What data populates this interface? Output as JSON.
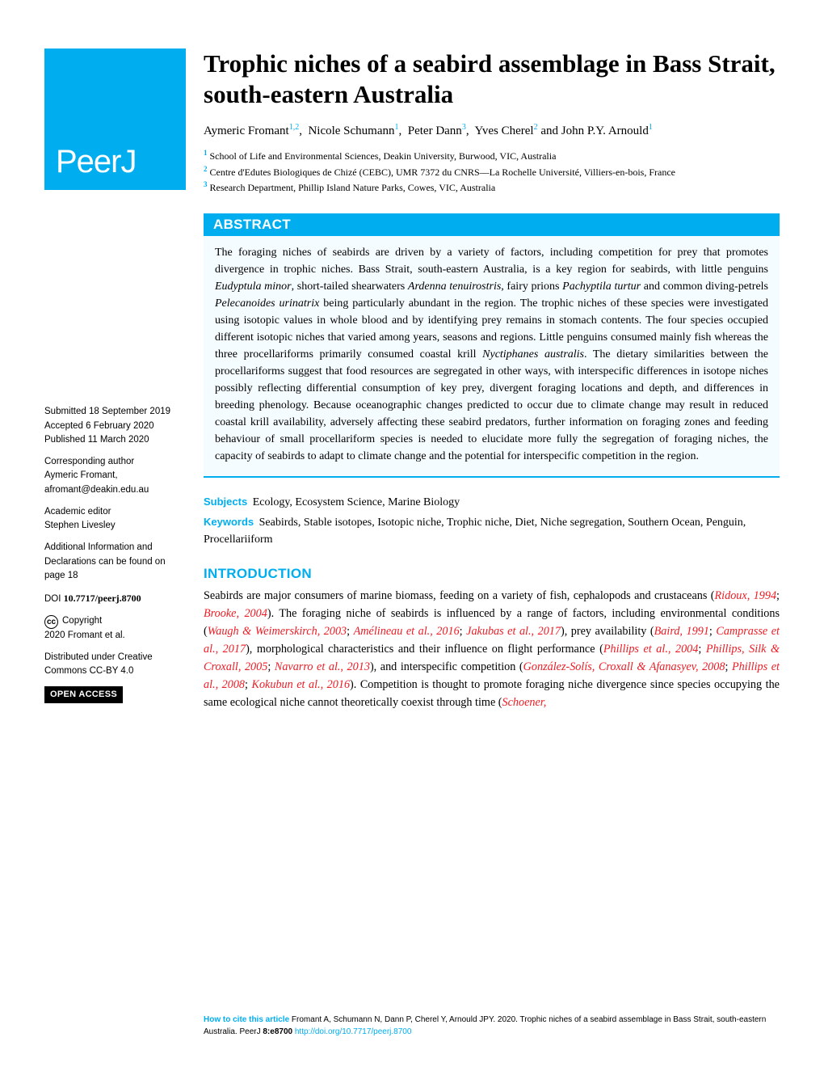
{
  "journal": {
    "logo_text": "PeerJ"
  },
  "colors": {
    "brand_blue": "#00aeef",
    "abstract_bg": "#f5fcff",
    "citation_red": "#ed1c24",
    "text": "#000000",
    "white": "#ffffff"
  },
  "article": {
    "title": "Trophic niches of a seabird assemblage in Bass Strait, south-eastern Australia",
    "authors_html": "Aymeric Fromant<span class=\"sup\">1,2</span>,&nbsp; Nicole Schumann<span class=\"sup\">1</span>,&nbsp; Peter Dann<span class=\"sup\">3</span>,&nbsp; Yves Cherel<span class=\"sup\">2</span> and John P.Y. Arnould<span class=\"sup\">1</span>",
    "affiliations": [
      {
        "num": "1",
        "text": "School of Life and Environmental Sciences, Deakin University, Burwood, VIC, Australia"
      },
      {
        "num": "2",
        "text": "Centre d'Edutes Biologiques de Chizé (CEBC), UMR 7372 du CNRS—La Rochelle Université, Villiers-en-bois, France"
      },
      {
        "num": "3",
        "text": "Research Department, Phillip Island Nature Parks, Cowes, VIC, Australia"
      }
    ],
    "abstract_label": "ABSTRACT",
    "abstract_html": "The foraging niches of seabirds are driven by a variety of factors, including competition for prey that promotes divergence in trophic niches. Bass Strait, south-eastern Australia, is a key region for seabirds, with little penguins <em>Eudyptula minor</em>, short-tailed shearwaters <em>Ardenna tenuirostris</em>, fairy prions <em>Pachyptila turtur</em> and common diving-petrels <em>Pelecanoides urinatrix</em> being particularly abundant in the region. The trophic niches of these species were investigated using isotopic values in whole blood and by identifying prey remains in stomach contents. The four species occupied different isotopic niches that varied among years, seasons and regions. Little penguins consumed mainly fish whereas the three procellariforms primarily consumed coastal krill <em>Nyctiphanes australis</em>. The dietary similarities between the procellariforms suggest that food resources are segregated in other ways, with interspecific differences in isotope niches possibly reflecting differential consumption of key prey, divergent foraging locations and depth, and differences in breeding phenology. Because oceanographic changes predicted to occur due to climate change may result in reduced coastal krill availability, adversely affecting these seabird predators, further information on foraging zones and feeding behaviour of small procellariform species is needed to elucidate more fully the segregation of foraging niches, the capacity of seabirds to adapt to climate change and the potential for interspecific competition in the region.",
    "subjects_label": "Subjects",
    "subjects": "Ecology, Ecosystem Science, Marine Biology",
    "keywords_label": "Keywords",
    "keywords": "Seabirds, Stable isotopes, Isotopic niche, Trophic niche, Diet, Niche segregation, Southern Ocean, Penguin, Procellariiform",
    "intro_label": "INTRODUCTION",
    "intro_html": "Seabirds are major consumers of marine biomass, feeding on a variety of fish, cephalopods and crustaceans (<span class=\"cite\">Ridoux, 1994</span>; <span class=\"cite\">Brooke, 2004</span>). The foraging niche of seabirds is influenced by a range of factors, including environmental conditions (<span class=\"cite\">Waugh & Weimerskirch, 2003</span>; <span class=\"cite\">Amélineau et al., 2016</span>; <span class=\"cite\">Jakubas et al., 2017</span>), prey availability (<span class=\"cite\">Baird, 1991</span>; <span class=\"cite\">Camprasse et al., 2017</span>), morphological characteristics and their influence on flight performance (<span class=\"cite\">Phillips et al., 2004</span>; <span class=\"cite\">Phillips, Silk & Croxall, 2005</span>; <span class=\"cite\">Navarro et al., 2013</span>), and interspecific competition (<span class=\"cite\">González-Solís, Croxall & Afanasyev, 2008</span>; <span class=\"cite\">Phillips et al., 2008</span>; <span class=\"cite\">Kokubun et al., 2016</span>). Competition is thought to promote foraging niche divergence since species occupying the same ecological niche cannot theoretically coexist through time (<span class=\"cite\">Schoener,</span>"
  },
  "sidebar": {
    "submitted_label": "Submitted",
    "submitted": "18 September 2019",
    "accepted_label": "Accepted",
    "accepted": "6 February 2020",
    "published_label": "Published",
    "published": "11 March 2020",
    "corresponding_label": "Corresponding author",
    "corresponding_name": "Aymeric Fromant,",
    "corresponding_email": "afromant@deakin.edu.au",
    "editor_label": "Academic editor",
    "editor": "Stephen Livesley",
    "addl_info": "Additional Information and Declarations can be found on page 18",
    "doi_label": "DOI",
    "doi": "10.7717/peerj.8700",
    "copyright_symbol": "cc",
    "copyright_label": "Copyright",
    "copyright_holder": "2020 Fromant et al.",
    "license": "Distributed under Creative Commons CC-BY 4.0",
    "open_access_label": "OPEN ACCESS"
  },
  "footer": {
    "howcite_label": "How to cite this article",
    "citation_text": "Fromant A, Schumann N, Dann P, Cherel Y, Arnould JPY. 2020. Trophic niches of a seabird assemblage in Bass Strait, south-eastern Australia. PeerJ",
    "vol_issue": "8:e8700",
    "doi_url": "http://doi.org/10.7717/peerj.8700"
  }
}
